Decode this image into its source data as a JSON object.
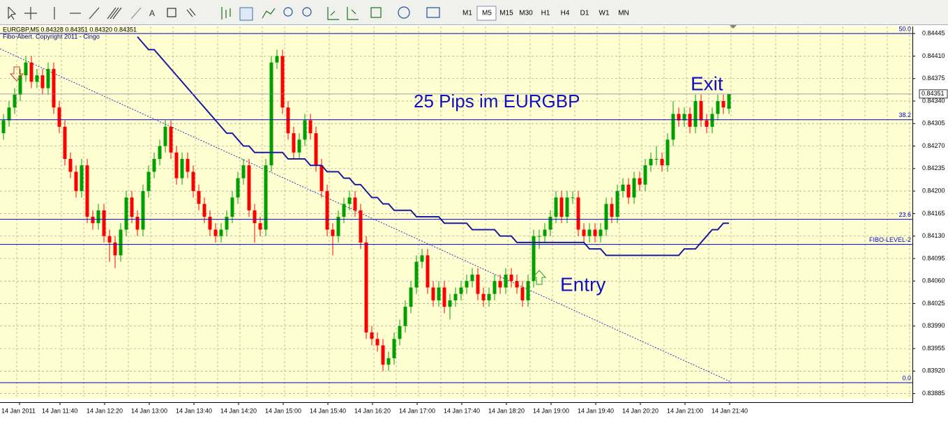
{
  "toolbar": {
    "timeframes": [
      "M1",
      "M5",
      "M15",
      "M30",
      "H1",
      "H4",
      "D1",
      "W1",
      "MN"
    ],
    "active": "M5"
  },
  "chart_data": {
    "type": "candlestick",
    "header": "EURGBP,M5  0.84328 0.84351 0.84320 0.84351",
    "indicator_label": "Fibo-Abert. Copyright 2011 - Cingo",
    "annotations": [
      "25 Pips im EURGBP",
      "Exit",
      "Entry"
    ],
    "up_color": "#00a000",
    "down_color": "#ff0000",
    "ma_color": "#1a1aa0",
    "fibo_color": "#0000c8",
    "ylim": [
      0.83877,
      0.84456
    ],
    "yticks": [
      0.84445,
      {
        "value": 0.8441,
        "label": "0.84410"
      },
      0.84375,
      {
        "value": 0.8434,
        "label": "0.84340"
      },
      0.84305,
      {
        "value": 0.8427,
        "label": "0.84270"
      },
      0.84235,
      {
        "value": 0.842,
        "label": "0.84200"
      },
      0.84165,
      {
        "value": 0.8413,
        "label": "0.84130"
      },
      0.84095,
      {
        "value": 0.8406,
        "label": "0.84060"
      },
      0.84025,
      {
        "value": 0.8399,
        "label": "0.83990"
      },
      0.83955,
      {
        "value": 0.8392,
        "label": "0.83920"
      },
      0.83885
    ],
    "xticks": [
      "14 Jan 2011",
      "14 Jan 11:40",
      "14 Jan 12:20",
      "14 Jan 13:00",
      "14 Jan 13:40",
      "14 Jan 14:20",
      "14 Jan 15:00",
      "14 Jan 15:40",
      "14 Jan 16:20",
      "14 Jan 17:00",
      "14 Jan 17:40",
      "14 Jan 18:20",
      "14 Jan 19:00",
      "14 Jan 19:40",
      "14 Jan 20:20",
      "14 Jan 21:00",
      "14 Jan 21:40"
    ],
    "grid": true,
    "last_price": {
      "value": 0.84351,
      "label": "0.84351"
    },
    "fibo_levels": [
      {
        "label": "50.0",
        "value": 0.84445
      },
      {
        "label": "38.2",
        "value": 0.84311
      },
      {
        "label": "23.6",
        "value": 0.84156
      },
      {
        "label": "FIBO-LEVEL-2",
        "value": 0.84117
      },
      {
        "label": "0.0",
        "value": 0.83902
      }
    ],
    "candles": [
      [
        0.8429,
        0.8432,
        0.8428,
        0.8431
      ],
      [
        0.8431,
        0.8434,
        0.843,
        0.8433
      ],
      [
        0.8433,
        0.8436,
        0.8432,
        0.8435
      ],
      [
        0.8435,
        0.8439,
        0.8434,
        0.8438
      ],
      [
        0.8438,
        0.8441,
        0.8437,
        0.844
      ],
      [
        0.844,
        0.8441,
        0.8436,
        0.8437
      ],
      [
        0.8437,
        0.8439,
        0.8436,
        0.8438
      ],
      [
        0.8438,
        0.8439,
        0.8435,
        0.8436
      ],
      [
        0.8436,
        0.844,
        0.8435,
        0.8439
      ],
      [
        0.8439,
        0.844,
        0.8432,
        0.8433
      ],
      [
        0.8433,
        0.8434,
        0.8429,
        0.843
      ],
      [
        0.843,
        0.8431,
        0.8424,
        0.8425
      ],
      [
        0.8425,
        0.8426,
        0.8422,
        0.8423
      ],
      [
        0.8423,
        0.8424,
        0.8419,
        0.842
      ],
      [
        0.842,
        0.8425,
        0.8419,
        0.8424
      ],
      [
        0.8424,
        0.8425,
        0.8415,
        0.8416
      ],
      [
        0.8416,
        0.8417,
        0.8414,
        0.8415
      ],
      [
        0.8415,
        0.8418,
        0.8414,
        0.8417
      ],
      [
        0.8417,
        0.8418,
        0.8412,
        0.8413
      ],
      [
        0.8413,
        0.8414,
        0.8409,
        0.8412
      ],
      [
        0.8412,
        0.8413,
        0.8408,
        0.841
      ],
      [
        0.841,
        0.8415,
        0.8409,
        0.8414
      ],
      [
        0.8414,
        0.842,
        0.8413,
        0.8419
      ],
      [
        0.8419,
        0.842,
        0.8415,
        0.8416
      ],
      [
        0.8416,
        0.8417,
        0.8413,
        0.8414
      ],
      [
        0.8414,
        0.8421,
        0.8413,
        0.842
      ],
      [
        0.842,
        0.8424,
        0.8419,
        0.8423
      ],
      [
        0.8423,
        0.8426,
        0.8422,
        0.8425
      ],
      [
        0.8425,
        0.8428,
        0.8424,
        0.8427
      ],
      [
        0.8427,
        0.8431,
        0.8426,
        0.843
      ],
      [
        0.843,
        0.8431,
        0.8425,
        0.8426
      ],
      [
        0.8426,
        0.8427,
        0.8421,
        0.8422
      ],
      [
        0.8422,
        0.8426,
        0.8421,
        0.8425
      ],
      [
        0.8425,
        0.8426,
        0.8422,
        0.8423
      ],
      [
        0.8423,
        0.8424,
        0.8419,
        0.842
      ],
      [
        0.842,
        0.8421,
        0.8417,
        0.8418
      ],
      [
        0.8418,
        0.8419,
        0.8415,
        0.8416
      ],
      [
        0.8416,
        0.8417,
        0.8413,
        0.8414
      ],
      [
        0.8414,
        0.8415,
        0.8412,
        0.8413
      ],
      [
        0.8413,
        0.8415,
        0.8412,
        0.8414
      ],
      [
        0.8414,
        0.8417,
        0.8413,
        0.8416
      ],
      [
        0.8416,
        0.842,
        0.8415,
        0.8419
      ],
      [
        0.8419,
        0.8423,
        0.8418,
        0.8422
      ],
      [
        0.8422,
        0.8425,
        0.8421,
        0.8424
      ],
      [
        0.8424,
        0.8425,
        0.8416,
        0.8417
      ],
      [
        0.8417,
        0.8418,
        0.8412,
        0.8415
      ],
      [
        0.8415,
        0.8416,
        0.8413,
        0.8414
      ],
      [
        0.8414,
        0.8425,
        0.8413,
        0.8424
      ],
      [
        0.8424,
        0.8441,
        0.8423,
        0.844
      ],
      [
        0.844,
        0.8442,
        0.8439,
        0.8441
      ],
      [
        0.8441,
        0.8442,
        0.8432,
        0.8433
      ],
      [
        0.8433,
        0.8434,
        0.8428,
        0.8429
      ],
      [
        0.8429,
        0.843,
        0.8425,
        0.8426
      ],
      [
        0.8426,
        0.8429,
        0.8425,
        0.8428
      ],
      [
        0.8428,
        0.8432,
        0.8427,
        0.8431
      ],
      [
        0.8431,
        0.8432,
        0.8428,
        0.8429
      ],
      [
        0.8429,
        0.843,
        0.8423,
        0.8424
      ],
      [
        0.8424,
        0.8425,
        0.8419,
        0.842
      ],
      [
        0.842,
        0.8421,
        0.8413,
        0.8414
      ],
      [
        0.8414,
        0.8415,
        0.841,
        0.8413
      ],
      [
        0.8413,
        0.8417,
        0.8412,
        0.8416
      ],
      [
        0.8416,
        0.8419,
        0.8415,
        0.8418
      ],
      [
        0.8418,
        0.842,
        0.8417,
        0.8419
      ],
      [
        0.8419,
        0.842,
        0.8416,
        0.8417
      ],
      [
        0.8417,
        0.8418,
        0.8411,
        0.8412
      ],
      [
        0.8412,
        0.8413,
        0.8397,
        0.8398
      ],
      [
        0.8398,
        0.8399,
        0.8396,
        0.8397
      ],
      [
        0.8397,
        0.8398,
        0.8395,
        0.8396
      ],
      [
        0.8396,
        0.8397,
        0.8392,
        0.8393
      ],
      [
        0.8393,
        0.8395,
        0.8392,
        0.8394
      ],
      [
        0.8394,
        0.8398,
        0.8393,
        0.8397
      ],
      [
        0.8397,
        0.84,
        0.8396,
        0.8399
      ],
      [
        0.8399,
        0.8403,
        0.8398,
        0.8402
      ],
      [
        0.8402,
        0.8406,
        0.8401,
        0.8405
      ],
      [
        0.8405,
        0.841,
        0.8404,
        0.8409
      ],
      [
        0.8409,
        0.8411,
        0.8408,
        0.841
      ],
      [
        0.841,
        0.8411,
        0.8404,
        0.8405
      ],
      [
        0.8405,
        0.8406,
        0.8402,
        0.8403
      ],
      [
        0.8403,
        0.8406,
        0.8402,
        0.8405
      ],
      [
        0.8405,
        0.8406,
        0.8401,
        0.8402
      ],
      [
        0.8402,
        0.8404,
        0.84,
        0.8403
      ],
      [
        0.8403,
        0.8405,
        0.8402,
        0.8404
      ],
      [
        0.8404,
        0.8406,
        0.8403,
        0.8405
      ],
      [
        0.8405,
        0.8407,
        0.8404,
        0.8406
      ],
      [
        0.8406,
        0.8408,
        0.8405,
        0.8407
      ],
      [
        0.8407,
        0.8408,
        0.8403,
        0.8404
      ],
      [
        0.8404,
        0.8405,
        0.8402,
        0.8403
      ],
      [
        0.8403,
        0.8405,
        0.8402,
        0.8404
      ],
      [
        0.8404,
        0.8407,
        0.8403,
        0.8406
      ],
      [
        0.8406,
        0.8407,
        0.8404,
        0.8405
      ],
      [
        0.8405,
        0.8408,
        0.8404,
        0.8407
      ],
      [
        0.8407,
        0.8408,
        0.8405,
        0.8406
      ],
      [
        0.8406,
        0.8407,
        0.8404,
        0.8405
      ],
      [
        0.8405,
        0.8406,
        0.8402,
        0.8403
      ],
      [
        0.8403,
        0.8407,
        0.8402,
        0.8406
      ],
      [
        0.8406,
        0.8414,
        0.8405,
        0.8413
      ],
      [
        0.8413,
        0.8414,
        0.8411,
        0.8413
      ],
      [
        0.8413,
        0.8415,
        0.8412,
        0.8414
      ],
      [
        0.8414,
        0.8417,
        0.8413,
        0.8416
      ],
      [
        0.8416,
        0.842,
        0.8415,
        0.8419
      ],
      [
        0.8419,
        0.842,
        0.8415,
        0.8416
      ],
      [
        0.8416,
        0.842,
        0.8415,
        0.8419
      ],
      [
        0.8419,
        0.842,
        0.8418,
        0.8419
      ],
      [
        0.8419,
        0.842,
        0.8413,
        0.8414
      ],
      [
        0.8414,
        0.8415,
        0.8412,
        0.8413
      ],
      [
        0.8413,
        0.8415,
        0.8412,
        0.8414
      ],
      [
        0.8414,
        0.8415,
        0.8412,
        0.8413
      ],
      [
        0.8413,
        0.8415,
        0.8412,
        0.8414
      ],
      [
        0.8414,
        0.8419,
        0.8413,
        0.8418
      ],
      [
        0.8418,
        0.8419,
        0.8415,
        0.8416
      ],
      [
        0.8416,
        0.8421,
        0.8415,
        0.842
      ],
      [
        0.842,
        0.8422,
        0.8419,
        0.8421
      ],
      [
        0.8421,
        0.8422,
        0.8418,
        0.8419
      ],
      [
        0.8419,
        0.8423,
        0.8418,
        0.8422
      ],
      [
        0.8422,
        0.8423,
        0.842,
        0.8421
      ],
      [
        0.8421,
        0.8425,
        0.842,
        0.8424
      ],
      [
        0.8424,
        0.8426,
        0.8423,
        0.8425
      ],
      [
        0.8425,
        0.8427,
        0.8424,
        0.8425
      ],
      [
        0.8425,
        0.8426,
        0.8423,
        0.8424
      ],
      [
        0.8424,
        0.8429,
        0.8423,
        0.8428
      ],
      [
        0.8428,
        0.8434,
        0.8427,
        0.8432
      ],
      [
        0.8432,
        0.8433,
        0.843,
        0.8431
      ],
      [
        0.8431,
        0.8433,
        0.843,
        0.8432
      ],
      [
        0.8432,
        0.8433,
        0.8429,
        0.843
      ],
      [
        0.843,
        0.8435,
        0.8429,
        0.8434
      ],
      [
        0.8434,
        0.8435,
        0.843,
        0.8431
      ],
      [
        0.8431,
        0.8432,
        0.8429,
        0.843
      ],
      [
        0.843,
        0.8433,
        0.8429,
        0.8432
      ],
      [
        0.8432,
        0.8435,
        0.8431,
        0.8434
      ],
      [
        0.8434,
        0.8435,
        0.8432,
        0.8433
      ],
      [
        0.84328,
        0.84351,
        0.8432,
        0.84351
      ]
    ],
    "ma": [
      null,
      null,
      null,
      null,
      null,
      null,
      null,
      null,
      null,
      null,
      null,
      null,
      null,
      null,
      null,
      null,
      null,
      null,
      null,
      null,
      null,
      null,
      null,
      null,
      0.8444,
      0.8443,
      0.8442,
      0.8442,
      0.8441,
      0.844,
      0.8439,
      0.8438,
      0.8437,
      0.8436,
      0.8435,
      0.8434,
      0.8433,
      0.8432,
      0.8431,
      0.843,
      0.8429,
      0.8429,
      0.8428,
      0.8427,
      0.8427,
      0.8426,
      0.8426,
      0.8426,
      0.8426,
      0.8426,
      0.8426,
      0.8425,
      0.8425,
      0.8425,
      0.8425,
      0.8424,
      0.8424,
      0.8424,
      0.8423,
      0.8423,
      0.8423,
      0.8422,
      0.8422,
      0.8421,
      0.8421,
      0.842,
      0.8419,
      0.8419,
      0.8418,
      0.8418,
      0.8417,
      0.8417,
      0.8417,
      0.8417,
      0.8416,
      0.8416,
      0.8416,
      0.8416,
      0.8416,
      0.8415,
      0.8415,
      0.8415,
      0.8415,
      0.8415,
      0.8414,
      0.8414,
      0.8414,
      0.8414,
      0.8414,
      0.8413,
      0.8413,
      0.8413,
      0.8412,
      0.8412,
      0.8412,
      0.8412,
      0.8412,
      0.8412,
      0.8412,
      0.8412,
      0.8412,
      0.8412,
      0.8412,
      0.8412,
      0.8412,
      0.8411,
      0.8411,
      0.8411,
      0.841,
      0.841,
      0.841,
      0.841,
      0.841,
      0.841,
      0.841,
      0.841,
      0.841,
      0.841,
      0.841,
      0.841,
      0.841,
      0.841,
      0.8411,
      0.8411,
      0.8411,
      0.8412,
      0.8413,
      0.8414,
      0.8414,
      0.8415,
      0.8415
    ]
  }
}
